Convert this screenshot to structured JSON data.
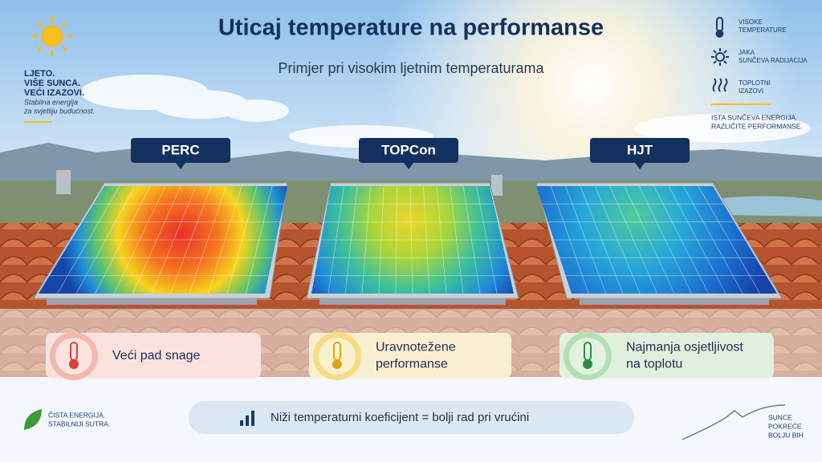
{
  "title": "Uticaj temperature na performanse",
  "subtitle": "Primjer pri visokim ljetnim temperaturama",
  "intro": {
    "lines": [
      "LJETO.",
      "VIŠE SUNCA.",
      "VEĆI IZAZOVI."
    ],
    "caption": [
      "Stabilna energija",
      "za svjetliju budućnost."
    ]
  },
  "legend": {
    "items": [
      [
        "VISOKE",
        "TEMPERATURE"
      ],
      [
        "JAKA",
        "SUNČEVA RADIJACIJA"
      ],
      [
        "TOPLOTNI",
        "IZAZOVI"
      ]
    ],
    "note": [
      "ISTA SUNČEVA ENERGIJA.",
      "RAZLIČITE PERFORMANSE."
    ]
  },
  "panels": [
    {
      "label": "PERC",
      "result": [
        "Veći pad snage"
      ]
    },
    {
      "label": "TOPCon",
      "result": [
        "Uravnotežene",
        "performanse"
      ]
    },
    {
      "label": "HJT",
      "result": [
        "Najmanja osjetljivost",
        "na toplotu"
      ]
    }
  ],
  "footer": {
    "left": [
      "ČISTA ENERGIJA.",
      "STABILNIJI SUTRA."
    ],
    "message": "Niži temperaturni koeficijent = bolji rad pri vrućini",
    "right": [
      "SUNCE",
      "POKREĆE",
      "BOLJU BIH"
    ]
  }
}
